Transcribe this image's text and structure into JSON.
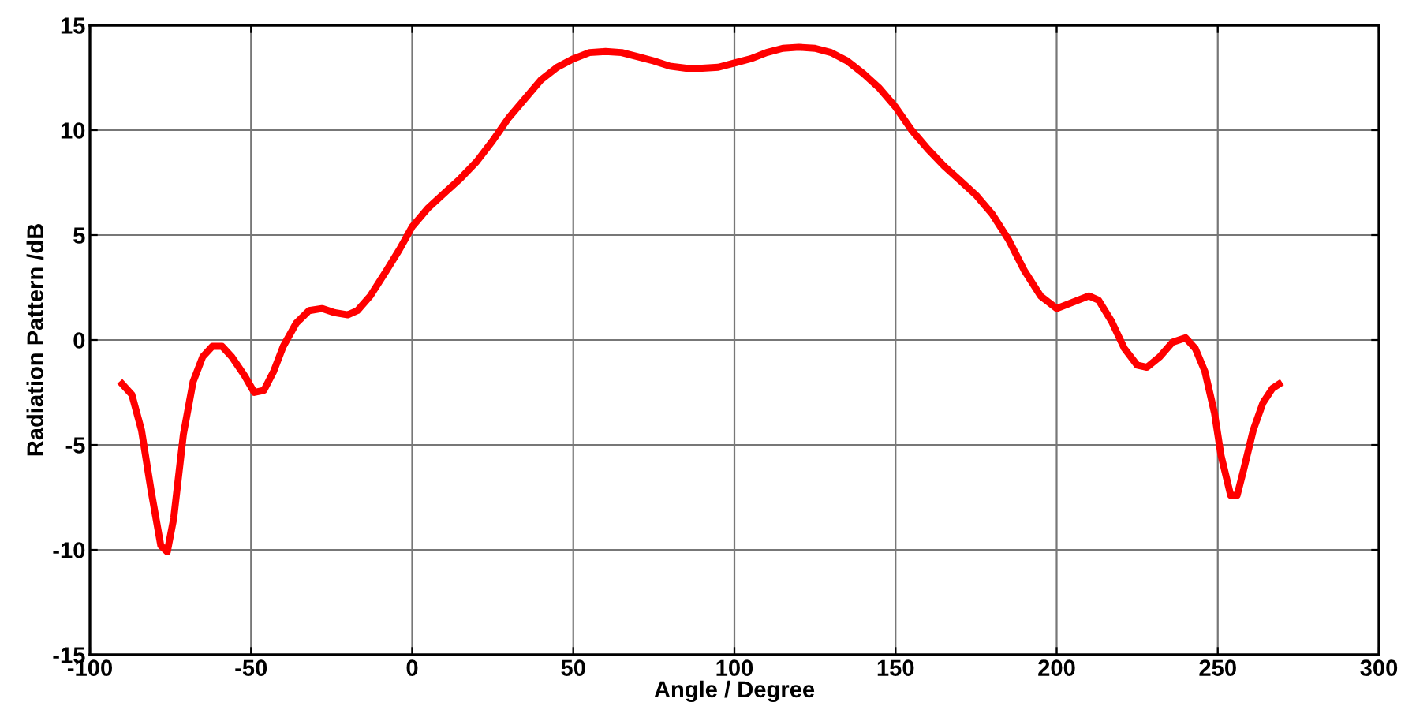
{
  "chart_data": {
    "type": "line",
    "xlabel": "Angle / Degree",
    "ylabel": "Radiation Pattern /dB",
    "xlim": [
      -100,
      300
    ],
    "xticks": [
      -100,
      -50,
      0,
      50,
      100,
      150,
      200,
      250,
      300
    ],
    "ylim": [
      -15,
      15
    ],
    "yticks": [
      -15,
      -10,
      -5,
      0,
      5,
      10,
      15
    ],
    "grid": true,
    "marker": "none",
    "line_style": "solid",
    "series": [
      {
        "color": "#ff0000",
        "x": [
          -90,
          -87,
          -84,
          -81,
          -78,
          -76,
          -74,
          -71,
          -68,
          -65,
          -62,
          -59,
          -56,
          -52,
          -49,
          -46,
          -43,
          -40,
          -36,
          -32,
          -28,
          -24,
          -20,
          -17,
          -13,
          -8,
          -4,
          0,
          5,
          10,
          15,
          20,
          25,
          30,
          35,
          40,
          45,
          50,
          55,
          60,
          65,
          70,
          75,
          80,
          85,
          90,
          95,
          100,
          105,
          110,
          115,
          120,
          125,
          130,
          135,
          140,
          145,
          150,
          155,
          160,
          165,
          170,
          175,
          180,
          185,
          190,
          195,
          200,
          205,
          210,
          213,
          217,
          221,
          225,
          228,
          232,
          236,
          240,
          243,
          246,
          249,
          251,
          254,
          256,
          258,
          261,
          264,
          267,
          269
        ],
        "values": [
          -2.1,
          -2.6,
          -4.3,
          -7.2,
          -9.8,
          -10.1,
          -8.5,
          -4.5,
          -2,
          -0.8,
          -0.3,
          -0.3,
          -0.8,
          -1.7,
          -2.5,
          -2.4,
          -1.5,
          -0.3,
          0.8,
          1.4,
          1.5,
          1.3,
          1.2,
          1.4,
          2.1,
          3.3,
          4.3,
          5.4,
          6.3,
          7.0,
          7.7,
          8.5,
          9.5,
          10.6,
          11.5,
          12.4,
          13.0,
          13.4,
          13.7,
          13.75,
          13.7,
          13.5,
          13.3,
          13.05,
          12.95,
          12.95,
          13.0,
          13.2,
          13.4,
          13.7,
          13.9,
          13.95,
          13.9,
          13.7,
          13.3,
          12.7,
          12.0,
          11.1,
          10.0,
          9.1,
          8.3,
          7.6,
          6.9,
          6.0,
          4.8,
          3.3,
          2.1,
          1.5,
          1.8,
          2.1,
          1.9,
          0.9,
          -0.4,
          -1.2,
          -1.3,
          -0.8,
          -0.1,
          0.1,
          -0.4,
          -1.5,
          -3.5,
          -5.5,
          -7.4,
          -7.4,
          -6.2,
          -4.3,
          -3.0,
          -2.3,
          -2.1
        ]
      }
    ]
  }
}
